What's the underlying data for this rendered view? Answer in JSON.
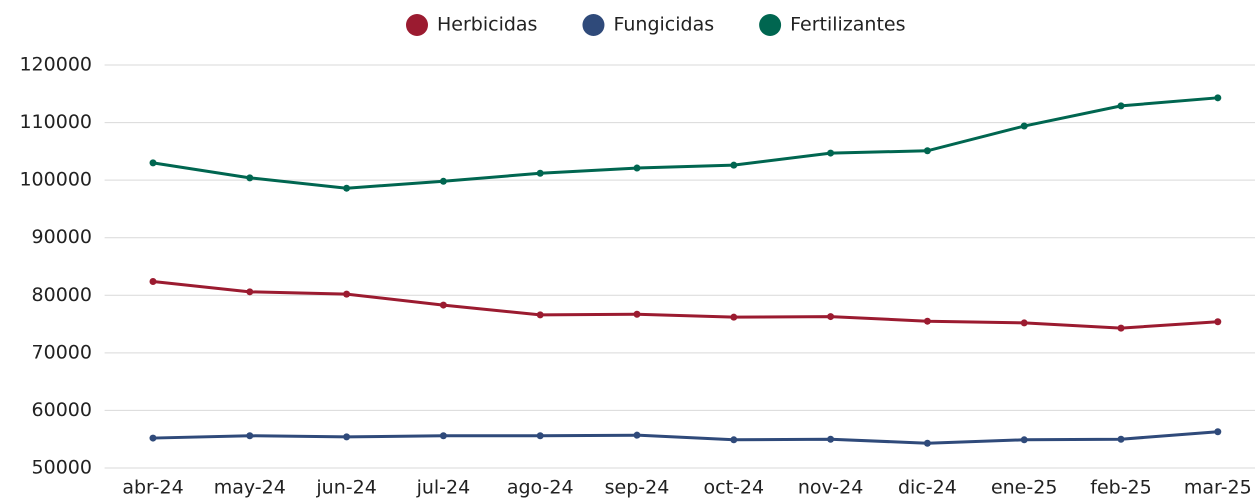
{
  "chart_data": {
    "type": "line",
    "categories": [
      "abr-24",
      "may-24",
      "jun-24",
      "jul-24",
      "ago-24",
      "sep-24",
      "oct-24",
      "nov-24",
      "dic-24",
      "ene-25",
      "feb-25",
      "mar-25"
    ],
    "series": [
      {
        "name": "Herbicidas",
        "color": "#9b1b30",
        "values": [
          82400,
          80600,
          80200,
          78300,
          76600,
          76700,
          76200,
          76300,
          75500,
          75200,
          74300,
          75400
        ]
      },
      {
        "name": "Fungicidas",
        "color": "#2f4a7a",
        "values": [
          55200,
          55600,
          55400,
          55600,
          55600,
          55700,
          54900,
          55000,
          54300,
          54900,
          55000,
          56300
        ]
      },
      {
        "name": "Fertilizantes",
        "color": "#006650",
        "values": [
          103000,
          100400,
          98600,
          99800,
          101200,
          102100,
          102600,
          104700,
          105100,
          109400,
          112900,
          114300
        ]
      }
    ],
    "ylim": [
      50000,
      120000
    ],
    "yticks": [
      50000,
      60000,
      70000,
      80000,
      90000,
      100000,
      110000,
      120000
    ],
    "grid": true,
    "legend": "top"
  }
}
